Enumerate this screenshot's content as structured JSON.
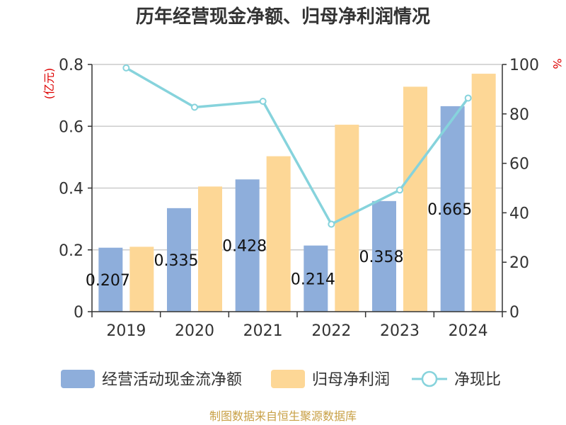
{
  "chart_data": {
    "type": "bar",
    "title": "历年经营现金净额、归母净利润情况",
    "categories": [
      "2019",
      "2020",
      "2021",
      "2022",
      "2023",
      "2024"
    ],
    "y_left": {
      "unit": "(亿元)",
      "ylim": [
        0,
        0.8
      ],
      "ticks": [
        "0",
        "0.2",
        "0.4",
        "0.6",
        "0.8"
      ]
    },
    "y_right": {
      "unit": "%",
      "ylim": [
        0,
        100
      ],
      "ticks": [
        "0",
        "20",
        "40",
        "60",
        "80",
        "100"
      ]
    },
    "series": [
      {
        "name": "经营活动现金流净额",
        "type": "bar",
        "axis": "left",
        "color": "#8eaedb",
        "values": [
          0.207,
          0.335,
          0.428,
          0.214,
          0.358,
          0.665
        ],
        "labels": [
          "0.207",
          "0.335",
          "0.428",
          "0.214",
          "0.358",
          "0.665"
        ]
      },
      {
        "name": "归母净利润",
        "type": "bar",
        "axis": "left",
        "color": "#fdd796",
        "values": [
          0.21,
          0.405,
          0.503,
          0.605,
          0.728,
          0.77
        ]
      },
      {
        "name": "净现比",
        "type": "line",
        "axis": "right",
        "color": "#86d3dc",
        "values": [
          98.6,
          82.7,
          85.1,
          35.4,
          49.2,
          86.4
        ]
      }
    ],
    "grid": true,
    "legend_position": "bottom"
  },
  "source_note": "制图数据来自恒生聚源数据库"
}
